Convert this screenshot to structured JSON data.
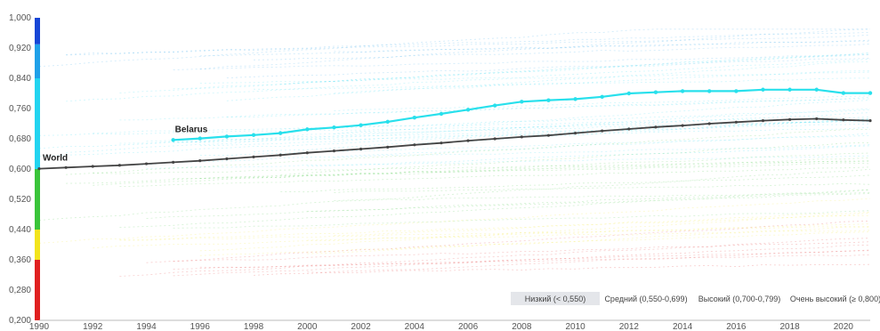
{
  "chart_data": {
    "type": "line",
    "title": "",
    "xlabel": "",
    "ylabel": "",
    "xlim": [
      1990,
      2021
    ],
    "ylim": [
      0.2,
      1.0
    ],
    "grid": false,
    "legend_placement": "bottom-right",
    "x_ticks": [
      {
        "value": 1990,
        "label": "1990"
      },
      {
        "value": 1992,
        "label": "1992"
      },
      {
        "value": 1994,
        "label": "1994"
      },
      {
        "value": 1996,
        "label": "1996"
      },
      {
        "value": 1998,
        "label": "1998"
      },
      {
        "value": 2000,
        "label": "2000"
      },
      {
        "value": 2002,
        "label": "2002"
      },
      {
        "value": 2004,
        "label": "2004"
      },
      {
        "value": 2006,
        "label": "2006"
      },
      {
        "value": 2008,
        "label": "2008"
      },
      {
        "value": 2010,
        "label": "2010"
      },
      {
        "value": 2012,
        "label": "2012"
      },
      {
        "value": 2014,
        "label": "2014"
      },
      {
        "value": 2016,
        "label": "2016"
      },
      {
        "value": 2018,
        "label": "2018"
      },
      {
        "value": 2020,
        "label": "2020"
      }
    ],
    "y_ticks": [
      {
        "value": 0.2,
        "label": "0,200"
      },
      {
        "value": 0.28,
        "label": "0,280"
      },
      {
        "value": 0.36,
        "label": "0,360"
      },
      {
        "value": 0.44,
        "label": "0,440"
      },
      {
        "value": 0.52,
        "label": "0,520"
      },
      {
        "value": 0.6,
        "label": "0,600"
      },
      {
        "value": 0.68,
        "label": "0,680"
      },
      {
        "value": 0.76,
        "label": "0,760"
      },
      {
        "value": 0.84,
        "label": "0,840"
      },
      {
        "value": 0.92,
        "label": "0,920"
      },
      {
        "value": 1.0,
        "label": "1,000"
      }
    ],
    "color_scale": [
      {
        "from": 0.2,
        "to": 0.36,
        "color": "#e02020"
      },
      {
        "from": 0.36,
        "to": 0.44,
        "color": "#f2e41c"
      },
      {
        "from": 0.44,
        "to": 0.6,
        "color": "#3ac43a"
      },
      {
        "from": 0.6,
        "to": 0.84,
        "color": "#22d4f0"
      },
      {
        "from": 0.84,
        "to": 0.93,
        "color": "#1fa0e8"
      },
      {
        "from": 0.93,
        "to": 1.0,
        "color": "#1646d6"
      }
    ],
    "series": [
      {
        "name": "World",
        "color": "#444444",
        "x": [
          1990,
          1991,
          1992,
          1993,
          1994,
          1995,
          1996,
          1997,
          1998,
          1999,
          2000,
          2001,
          2002,
          2003,
          2004,
          2005,
          2006,
          2007,
          2008,
          2009,
          2010,
          2011,
          2012,
          2013,
          2014,
          2015,
          2016,
          2017,
          2018,
          2019,
          2020,
          2021
        ],
        "values": [
          0.601,
          0.604,
          0.607,
          0.61,
          0.614,
          0.618,
          0.622,
          0.627,
          0.632,
          0.637,
          0.643,
          0.648,
          0.653,
          0.658,
          0.664,
          0.669,
          0.675,
          0.68,
          0.685,
          0.689,
          0.695,
          0.701,
          0.706,
          0.711,
          0.715,
          0.72,
          0.724,
          0.728,
          0.731,
          0.733,
          0.73,
          0.728
        ]
      },
      {
        "name": "Belarus",
        "color": "#28e0ec",
        "x": [
          1995,
          1996,
          1997,
          1998,
          1999,
          2000,
          2001,
          2002,
          2003,
          2004,
          2005,
          2006,
          2007,
          2008,
          2009,
          2010,
          2011,
          2012,
          2013,
          2014,
          2015,
          2016,
          2017,
          2018,
          2019,
          2020,
          2021
        ],
        "values": [
          0.677,
          0.681,
          0.686,
          0.69,
          0.695,
          0.705,
          0.71,
          0.716,
          0.725,
          0.736,
          0.746,
          0.757,
          0.768,
          0.778,
          0.782,
          0.785,
          0.791,
          0.8,
          0.803,
          0.806,
          0.806,
          0.806,
          0.81,
          0.81,
          0.81,
          0.801,
          0.801
        ]
      }
    ],
    "legend": [
      {
        "label": "Низкий (< 0,550)",
        "active": true
      },
      {
        "label": "Средний (0,550-0,699)",
        "active": false
      },
      {
        "label": "Высокий (0,700-0,799)",
        "active": false
      },
      {
        "label": "Очень высокий (≥ 0,800)",
        "active": false
      }
    ]
  }
}
